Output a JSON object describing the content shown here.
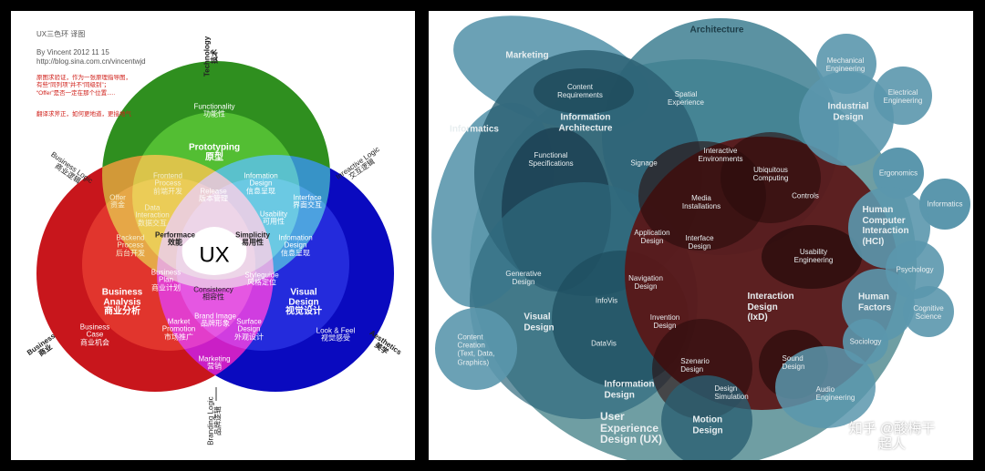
{
  "left_diagram": {
    "header": {
      "title": "UX三色环 译图",
      "byline": "By Vincent  2012 11 15",
      "url": "http://blog.sina.com.cn/vincentwjd",
      "note1": "原图求验证，作为一张原理指导图，\n有些“同列项”并不“同级别”；\n“Offer”是否一定在那个位置.....",
      "note2": "翻译求斧正，如何更地道，更接地气"
    },
    "axes": {
      "technology": "Technology\n技术",
      "business_logic": "Business Logic\n商业逻辑",
      "interactive_logic": "Inreactive Logic\n交互逻辑",
      "business": "Business\n商业",
      "aesthetics": "Aesthetics\n美学",
      "branding_logic": "Branding Logic\n品牌逻辑"
    },
    "colors": {
      "technology": "#2f8f1f",
      "business": "#c8161c",
      "aesthetics": "#0a0abf"
    },
    "labels": {
      "functionality": "Functionality\n功能性",
      "prototyping": "Prototyping\n原型",
      "frontend": "Frontend\nProcess\n前端开发",
      "info_design_top": "Infomation\nDesign\n信息呈现",
      "release": "Release\n版本管理",
      "offer": "Offer\n资金",
      "interface": "Interface\n界面交互",
      "data_interaction": "Data\nInteraction\n数据交互",
      "usability": "Usability\n可用性",
      "performance": "Performace\n效能",
      "simplicity": "Simplicity\n易用性",
      "ux": "UX",
      "backend": "Backend\nProcess\n后台开发",
      "info_design_right": "Infomation\nDesign\n信息呈现",
      "business_plan": "Business\nPlan\n商业计划",
      "styleguide": "Styleguide\n风格定位",
      "consistency": "Consistency\n相容性",
      "business_analysis": "Business\nAnalysis\n商业分析",
      "visual_design": "Visual\nDesign\n视觉设计",
      "business_case": "Business\nCase\n商业机会",
      "market_promotion": "Market\nPromotion\n市场推广",
      "brand_image": "Brand Image\n品牌形象",
      "surface_design": "Surface\nDesign\n外观设计",
      "look_feel": "Look & Feel\n视觉感受",
      "marketing": "Marketing\n营销"
    }
  },
  "right_diagram": {
    "colors": {
      "teal": "#3e7f92",
      "ux": "#6f9ea3",
      "ixd": "#5a1616",
      "light": "#5f9fb3"
    },
    "labels": {
      "marketing": "Marketing",
      "architecture": "Architecture",
      "content_requirements": "Content\nRequirements",
      "spatial_experience": "Spatial\nExperience",
      "information_architecture": "Information\nArchitecture",
      "informatics_left": "Informatics",
      "mechanical_engineering": "Mechanical\nEngineering",
      "industrial_design": "Industrial\nDesign",
      "electrical_engineering": "Electrical\nEngineering",
      "functional_specifications": "Functional\nSpecifications",
      "signage": "Signage",
      "interactive_environments": "Interactive\nEnvironments",
      "ubiquitous_computing": "Ubiquitous\nComputing",
      "controls": "Controls",
      "media_installations": "Media\nInstallations",
      "ergonomics": "Ergonomics",
      "informatics_right": "Informatics",
      "hci": "Human\nComputer\nInteraction\n(HCI)",
      "application_design": "Application\nDesign",
      "interface_design": "Interface\nDesign",
      "usability_engineering": "Usability\nEngineering",
      "psychology": "Psychology",
      "generative_design": "Generative\nDesign",
      "navigation_design": "Navigation\nDesign",
      "infovis": "InfoVis",
      "ixd": "Interaction\nDesign\n(IxD)",
      "human_factors": "Human\nFactors",
      "cognitive_science": "Cognitive\nScience",
      "visual_design": "Visual\nDesign",
      "invention_design": "Invention\nDesign",
      "content_creation": "Content\nCreation\n(Text, Data,\nGraphics)",
      "datavis": "DataVis",
      "sociology": "Sociology",
      "scenario_design": "Szenario\nDesign",
      "sound_design": "Sound\nDesign",
      "information_design": "Information\nDesign",
      "design_simulation": "Design\nSimulation",
      "audio_engineering": "Audio\nEngineering",
      "ux": "User\nExperience\nDesign (UX)",
      "motion_design": "Motion\nDesign"
    },
    "watermark": "知乎 @酸梅干超人"
  }
}
